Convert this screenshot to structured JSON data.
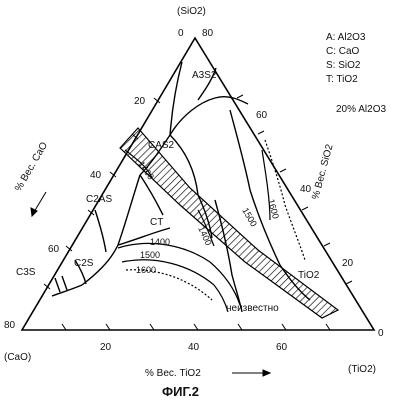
{
  "corners": {
    "top_value": "0",
    "top_value2": "80",
    "top_name": "(SiO2)",
    "left_value": "80",
    "left_name": "(CaO)",
    "right_value": "0",
    "right_name": "(TiO2)"
  },
  "legend": {
    "items": [
      "A: Al2O3",
      "C: CaO",
      "S: SiO2",
      "T: TiO2"
    ],
    "note": "20% Al2O3"
  },
  "axes": {
    "left_title": "% Вес. CaO",
    "right_title": "% Вес. SiO2",
    "bottom_title": "% Вес. TiO2",
    "left_ticks": [
      "20",
      "40",
      "60"
    ],
    "right_ticks": [
      "60",
      "40",
      "20"
    ],
    "bottom_ticks": [
      "20",
      "40",
      "60"
    ]
  },
  "phase_labels": {
    "a3s2": "A3S2",
    "cas2": "CAS2",
    "c2as": "C2AS",
    "ct": "CT",
    "c2s": "C2S",
    "c3s": "C3S",
    "tio2": "TiO2",
    "unknown": "неизвестно"
  },
  "isotherms": {
    "t1400": "1400",
    "t1500": "1500",
    "t1600": "1600",
    "t1400_upper": "1400",
    "t1500_right": "1500",
    "t1600_right": "1600",
    "t1400_mid": "1400"
  },
  "caption": "ФИГ.2"
}
